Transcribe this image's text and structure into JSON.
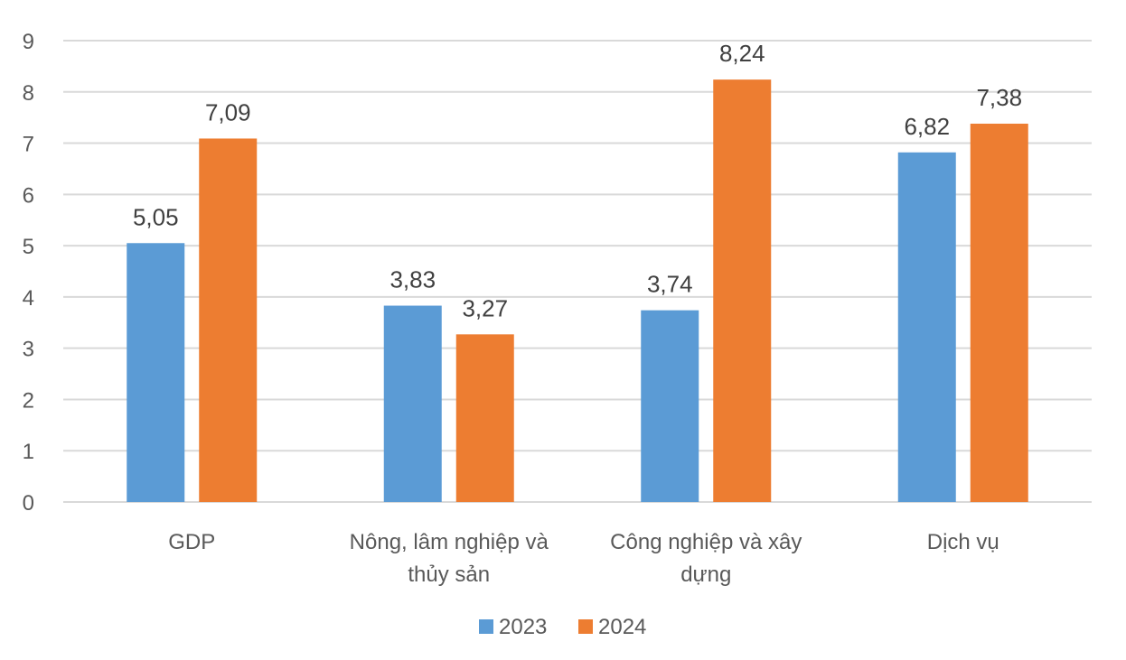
{
  "chart_data": {
    "type": "bar",
    "title": "",
    "xlabel": "",
    "ylabel": "",
    "ylim": [
      0,
      9
    ],
    "yticks": [
      "0",
      "1",
      "2",
      "3",
      "4",
      "5",
      "6",
      "7",
      "8",
      "9"
    ],
    "grid": true,
    "legend_position": "bottom",
    "categories": [
      [
        "GDP"
      ],
      [
        "Nông, lâm nghiệp và",
        "thủy sản"
      ],
      [
        "Công nghiệp và xây",
        "dựng"
      ],
      [
        "Dịch vụ"
      ]
    ],
    "series": [
      {
        "name": "2023",
        "color": "#5b9bd5",
        "values": [
          5.05,
          3.83,
          3.74,
          6.82
        ],
        "labels": [
          "5,05",
          "3,83",
          "3,74",
          "6,82"
        ]
      },
      {
        "name": "2024",
        "color": "#ed7d31",
        "values": [
          7.09,
          3.27,
          8.24,
          7.38
        ],
        "labels": [
          "7,09",
          "3,27",
          "8,24",
          "7,38"
        ]
      }
    ]
  }
}
